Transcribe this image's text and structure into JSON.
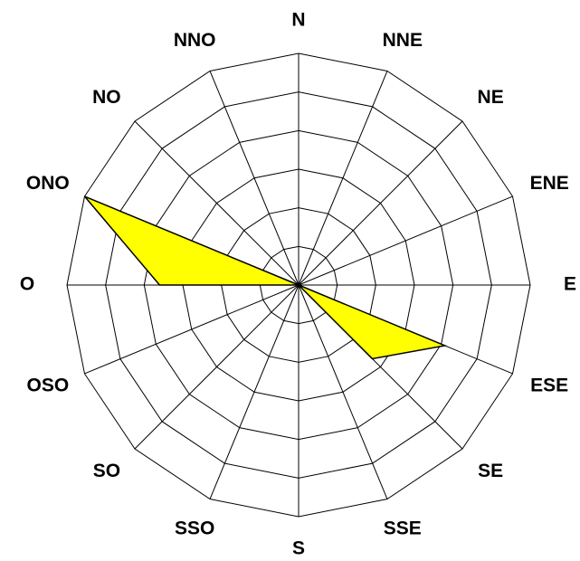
{
  "chart_data": {
    "type": "radar",
    "categories": [
      "N",
      "NNE",
      "NE",
      "ENE",
      "E",
      "ESE",
      "SE",
      "SSE",
      "S",
      "SSO",
      "SO",
      "OSO",
      "O",
      "ONO",
      "NO",
      "NNO"
    ],
    "values": [
      0,
      0,
      0,
      0,
      0,
      4.1,
      2.7,
      0,
      0,
      0,
      0,
      0,
      3.6,
      6,
      0,
      0
    ],
    "color": "#ffff00",
    "rlim": [
      0,
      6
    ],
    "rticks": [
      1,
      2,
      3,
      4,
      5,
      6
    ],
    "grid": true
  }
}
